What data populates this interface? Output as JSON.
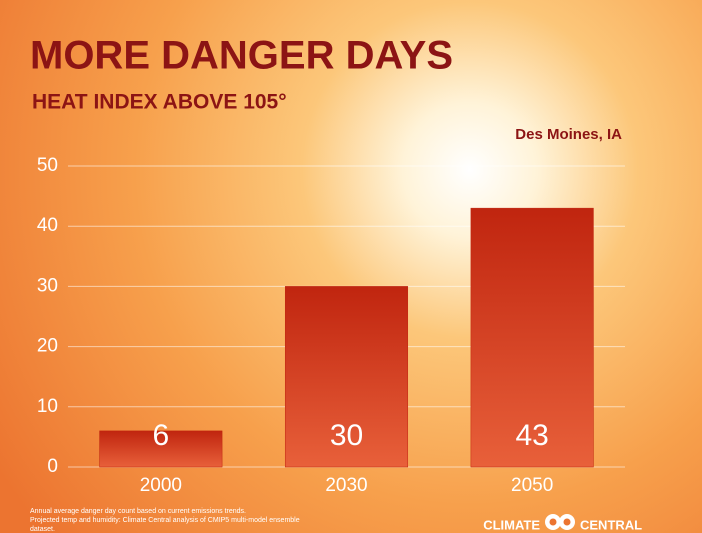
{
  "chart_data": {
    "type": "bar",
    "title": "MORE DANGER DAYS",
    "subtitle": "HEAT INDEX ABOVE 105°",
    "annotation": "Des Moines, IA",
    "categories": [
      "2000",
      "2030",
      "2050"
    ],
    "values": [
      6,
      30,
      43
    ],
    "color": "#c0250f",
    "ylim": [
      0,
      50
    ],
    "yticks": [
      0,
      10,
      20,
      30,
      40,
      50
    ],
    "grid": true,
    "footnote": [
      "Annual average danger day count based on current emissions trends.",
      "Projected temp and humidity: Climate Central analysis of CMIP5 multi-model ensemble",
      "dataset."
    ],
    "logo": [
      "CLIMATE",
      "CENTRAL"
    ]
  }
}
